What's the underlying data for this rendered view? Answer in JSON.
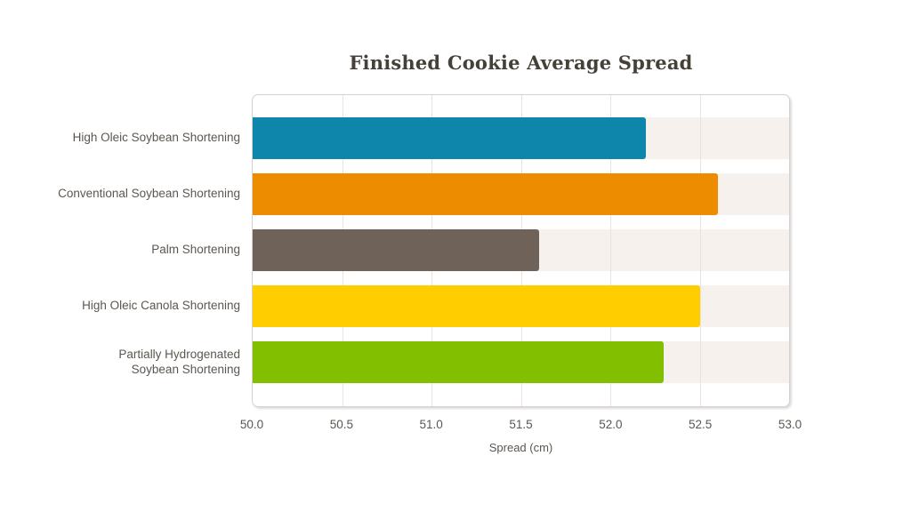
{
  "chart_data": {
    "type": "bar",
    "orientation": "horizontal",
    "title": "Finished Cookie Average Spread",
    "xlabel": "Spread (cm)",
    "ylabel": "",
    "xlim": [
      50.0,
      53.0
    ],
    "xticks": [
      "50.0",
      "50.5",
      "51.0",
      "51.5",
      "52.0",
      "52.5",
      "53.0"
    ],
    "categories": [
      "High Oleic Soybean Shortening",
      "Conventional Soybean Shortening",
      "Palm Shortening",
      "High Oleic Canola Shortening",
      "Partially Hydrogenated\nSoybean Shortening"
    ],
    "values": [
      52.2,
      52.6,
      51.6,
      52.5,
      52.3
    ],
    "bar_colors": [
      "#0e86ac",
      "#ee8c00",
      "#6e6259",
      "#ffcd00",
      "#82bf00"
    ],
    "track_color": "#f7f1ed",
    "grid_color": "#e8e3df",
    "grid": true,
    "legend": false
  },
  "style": {
    "title_color": "#454038",
    "label_color": "#5c5650",
    "panel_border_color": "#d6d1ce",
    "background": "#ffffff"
  }
}
